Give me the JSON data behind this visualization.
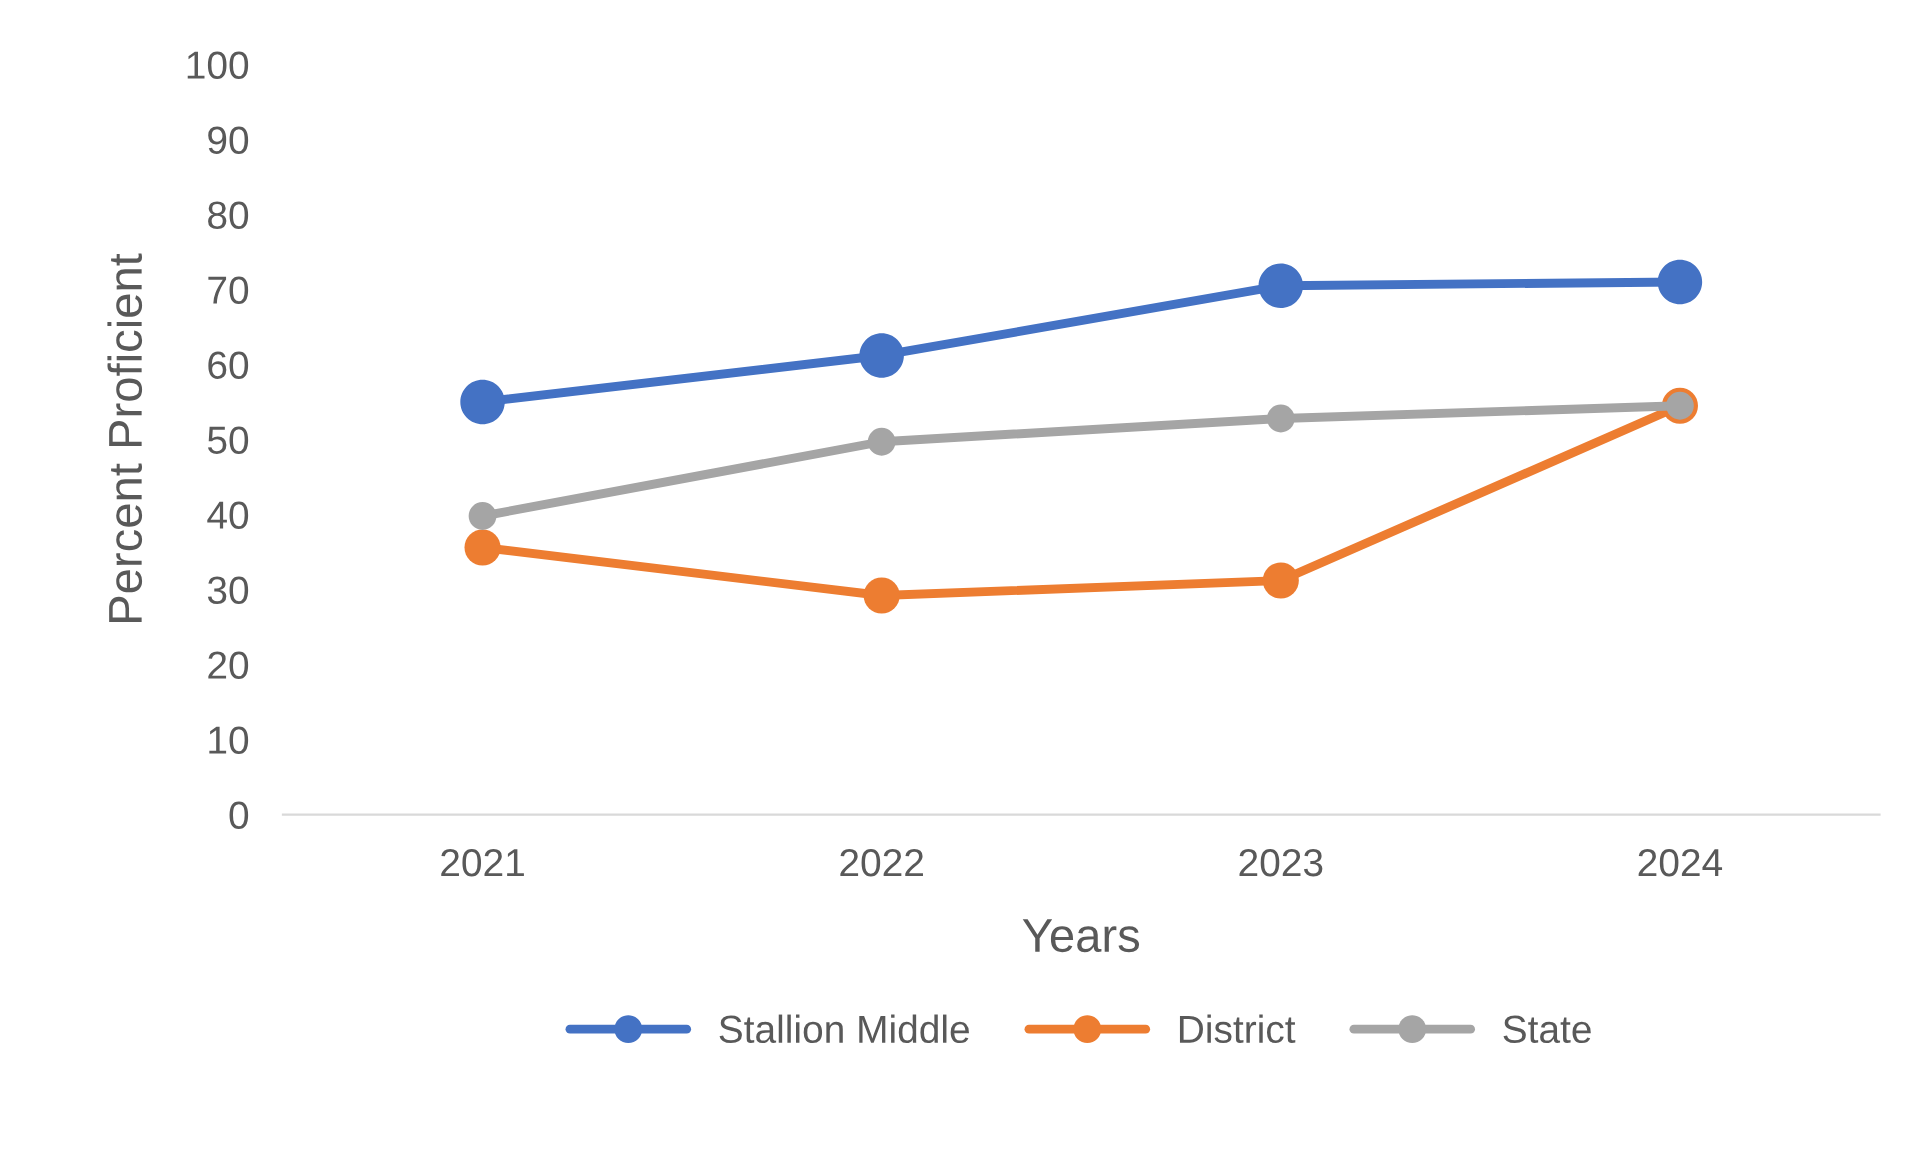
{
  "chart_data": {
    "type": "line",
    "xlabel": "Years",
    "ylabel": "Percent Proficient",
    "categories": [
      "2021",
      "2022",
      "2023",
      "2024"
    ],
    "series": [
      {
        "name": "Stallion Middle",
        "color": "#4472c4",
        "values": [
          55,
          61.2,
          70.5,
          71
        ]
      },
      {
        "name": "District",
        "color": "#ed7d31",
        "values": [
          35.6,
          29.2,
          31.2,
          54.5
        ]
      },
      {
        "name": "State",
        "color": "#a5a5a5",
        "values": [
          39.8,
          49.7,
          52.8,
          54.5
        ]
      }
    ],
    "ylim": [
      0,
      100
    ],
    "yticks": [
      0,
      10,
      20,
      30,
      40,
      50,
      60,
      70,
      80,
      90,
      100
    ],
    "grid": false,
    "legend": "bottom",
    "marker": "circle",
    "line_style": "solid"
  }
}
